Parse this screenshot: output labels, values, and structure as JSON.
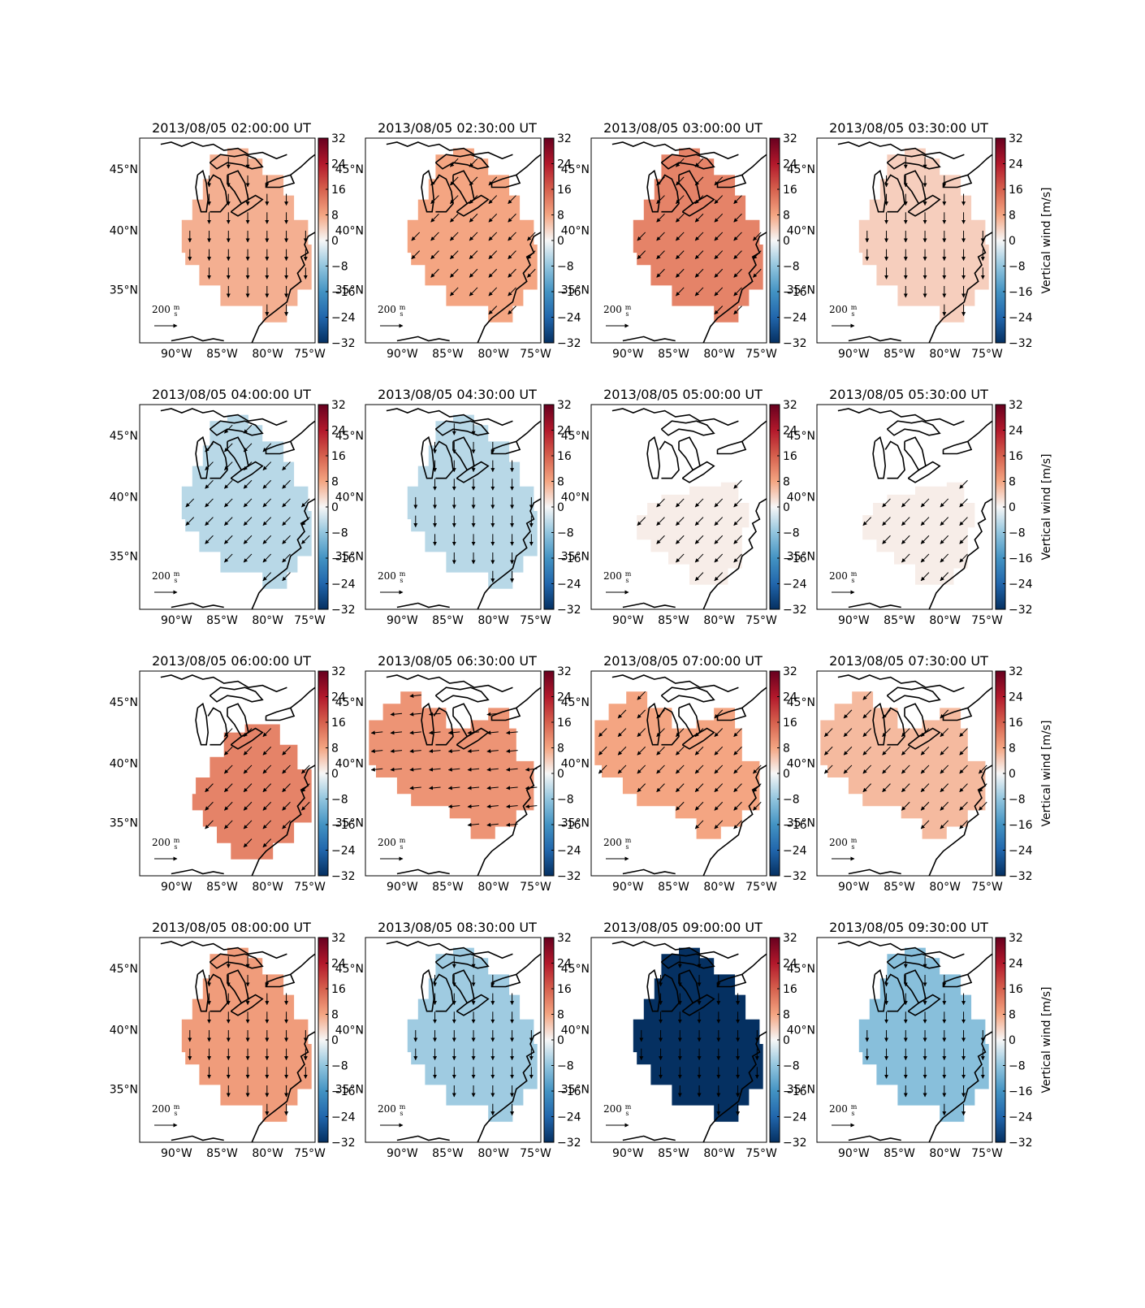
{
  "figure": {
    "colorbar_label": "Vertical wind [m/s]",
    "colorbar_ticks": [
      "32",
      "24",
      "16",
      "8",
      "0",
      "−8",
      "−16",
      "−24",
      "−32"
    ],
    "colorbar_range": [
      -32,
      32
    ],
    "lon_ticks": [
      "90°W",
      "85°W",
      "80°W",
      "75°W"
    ],
    "lat_ticks": [
      "45°N",
      "40°N",
      "35°N"
    ],
    "scale_arrow_value": "200",
    "scale_arrow_unit_num": "m",
    "scale_arrow_unit_den": "s",
    "colors": {
      "map_line": "#000000",
      "scale_top": "#67001f",
      "scale_mid": "#f7f7f7",
      "scale_bottom": "#053061"
    }
  },
  "panels": [
    {
      "title": "2013/08/05 02:00:00 UT",
      "vertical_wind": 7,
      "region": "wide",
      "arrow_dir": "south"
    },
    {
      "title": "2013/08/05 02:30:00 UT",
      "vertical_wind": 8,
      "region": "wide",
      "arrow_dir": "southwest"
    },
    {
      "title": "2013/08/05 03:00:00 UT",
      "vertical_wind": 12,
      "region": "wide",
      "arrow_dir": "southwest"
    },
    {
      "title": "2013/08/05 03:30:00 UT",
      "vertical_wind": 4,
      "region": "wide",
      "arrow_dir": "south"
    },
    {
      "title": "2013/08/05 04:00:00 UT",
      "vertical_wind": -5,
      "region": "wide",
      "arrow_dir": "southwest"
    },
    {
      "title": "2013/08/05 04:30:00 UT",
      "vertical_wind": -5,
      "region": "wide",
      "arrow_dir": "south"
    },
    {
      "title": "2013/08/05 05:00:00 UT",
      "vertical_wind": 1,
      "region": "south",
      "arrow_dir": "southwest"
    },
    {
      "title": "2013/08/05 05:30:00 UT",
      "vertical_wind": 1,
      "region": "south",
      "arrow_dir": "southwest"
    },
    {
      "title": "2013/08/05 06:00:00 UT",
      "vertical_wind": 12,
      "region": "southeast",
      "arrow_dir": "southwest"
    },
    {
      "title": "2013/08/05 06:30:00 UT",
      "vertical_wind": 10,
      "region": "band",
      "arrow_dir": "west"
    },
    {
      "title": "2013/08/05 07:00:00 UT",
      "vertical_wind": 8,
      "region": "band",
      "arrow_dir": "southwest"
    },
    {
      "title": "2013/08/05 07:30:00 UT",
      "vertical_wind": 6,
      "region": "band",
      "arrow_dir": "southwest"
    },
    {
      "title": "2013/08/05 08:00:00 UT",
      "vertical_wind": 9,
      "region": "wide",
      "arrow_dir": "south"
    },
    {
      "title": "2013/08/05 08:30:00 UT",
      "vertical_wind": -7,
      "region": "wide",
      "arrow_dir": "south"
    },
    {
      "title": "2013/08/05 09:00:00 UT",
      "vertical_wind": -32,
      "region": "wide",
      "arrow_dir": "south"
    },
    {
      "title": "2013/08/05 09:30:00 UT",
      "vertical_wind": -9,
      "region": "wide",
      "arrow_dir": "south"
    }
  ]
}
